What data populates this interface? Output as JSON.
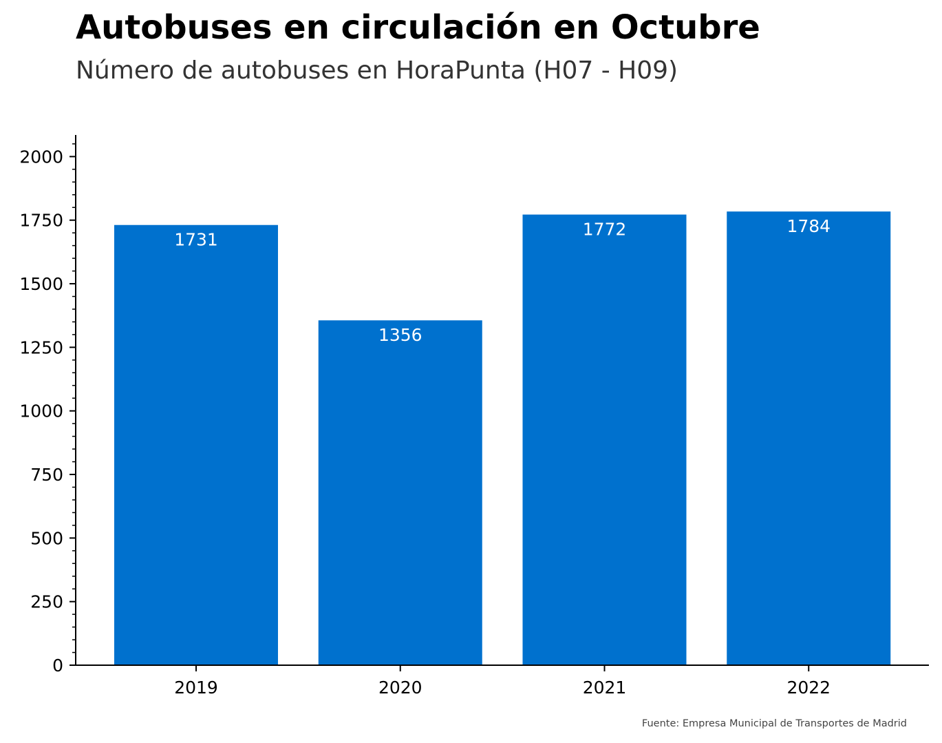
{
  "title": "Autobuses en circulación en Octubre",
  "subtitle": "Número de autobuses en HoraPunta (H07 - H09)",
  "source": "Fuente: Empresa Municipal de Transportes de Madrid",
  "colors": {
    "bar": "#0071ce",
    "bar_label": "#ffffff",
    "axis": "#000000"
  },
  "chart_data": {
    "type": "bar",
    "categories": [
      "2019",
      "2020",
      "2021",
      "2022"
    ],
    "values": [
      1731,
      1356,
      1772,
      1784
    ],
    "title": "Autobuses en circulación en Octubre",
    "subtitle": "Número de autobuses en HoraPunta (H07 - H09)",
    "xlabel": "",
    "ylabel": "",
    "ylim": [
      0,
      2085
    ],
    "yticks": [
      0,
      250,
      500,
      750,
      1000,
      1250,
      1500,
      1750,
      2000
    ],
    "ytick_labels": [
      "0",
      "250",
      "500",
      "750",
      "1000",
      "1250",
      "1500",
      "1750",
      "2000"
    ],
    "data_labels": [
      "1731",
      "1356",
      "1772",
      "1784"
    ],
    "grid": false,
    "legend": "none"
  }
}
